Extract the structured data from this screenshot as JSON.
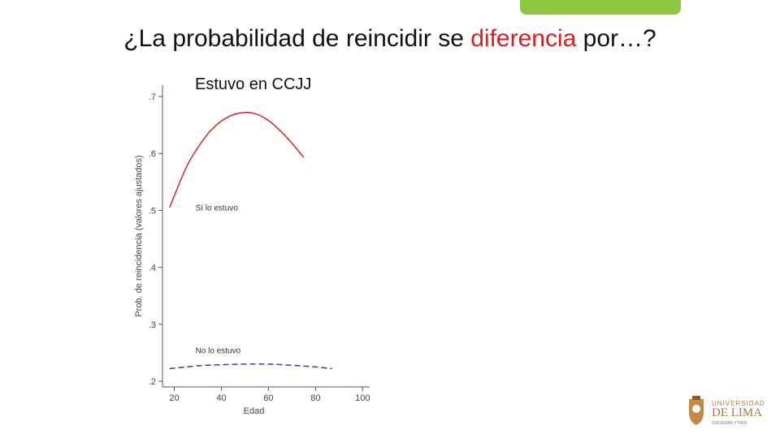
{
  "slide": {
    "title_before": "¿La probabilidad de reincidir se ",
    "title_highlight": "diferencia",
    "title_after": " por…?",
    "subtitle": "Estuvo en CCJJ"
  },
  "logo": {
    "line1": "UNIVERSIDAD",
    "line2": "DE LIMA",
    "line3": "SOCIEDAD Y PAIS"
  },
  "colors": {
    "accent_green": "#8dc63f",
    "highlight_red": "#d81e1e"
  },
  "chart_data": {
    "type": "line",
    "xlabel": "Edad",
    "ylabel": "Prob. de reincidencia (valores ajustados)",
    "xlim": [
      15,
      103
    ],
    "ylim": [
      0.19,
      0.72
    ],
    "xticks": [
      20,
      40,
      60,
      80,
      100
    ],
    "xtick_labels": [
      "20",
      "40",
      "60",
      "80",
      "100"
    ],
    "yticks": [
      0.2,
      0.3,
      0.4,
      0.5,
      0.6,
      0.7
    ],
    "ytick_labels": [
      ".2",
      ".3",
      ".4",
      ".5",
      ".6",
      ".7"
    ],
    "grid": false,
    "series": [
      {
        "name": "Sí lo estuvo",
        "color": "#d62728",
        "dash": "solid",
        "x": [
          18,
          25,
          30,
          35,
          40,
          45,
          50,
          55,
          60,
          65,
          70,
          75
        ],
        "y": [
          0.505,
          0.575,
          0.61,
          0.638,
          0.657,
          0.668,
          0.672,
          0.669,
          0.658,
          0.64,
          0.618,
          0.593
        ]
      },
      {
        "name": "No lo estuvo",
        "color": "#3a3aa8",
        "dash": "dashed",
        "x": [
          18,
          30,
          40,
          50,
          60,
          70,
          80,
          87
        ],
        "y": [
          0.222,
          0.227,
          0.229,
          0.23,
          0.23,
          0.228,
          0.225,
          0.222
        ]
      }
    ],
    "annotations": [
      {
        "text": "Sí lo estuvo",
        "x": 29,
        "y": 0.5
      },
      {
        "text": "No lo estuvo",
        "x": 29,
        "y": 0.249
      }
    ]
  }
}
